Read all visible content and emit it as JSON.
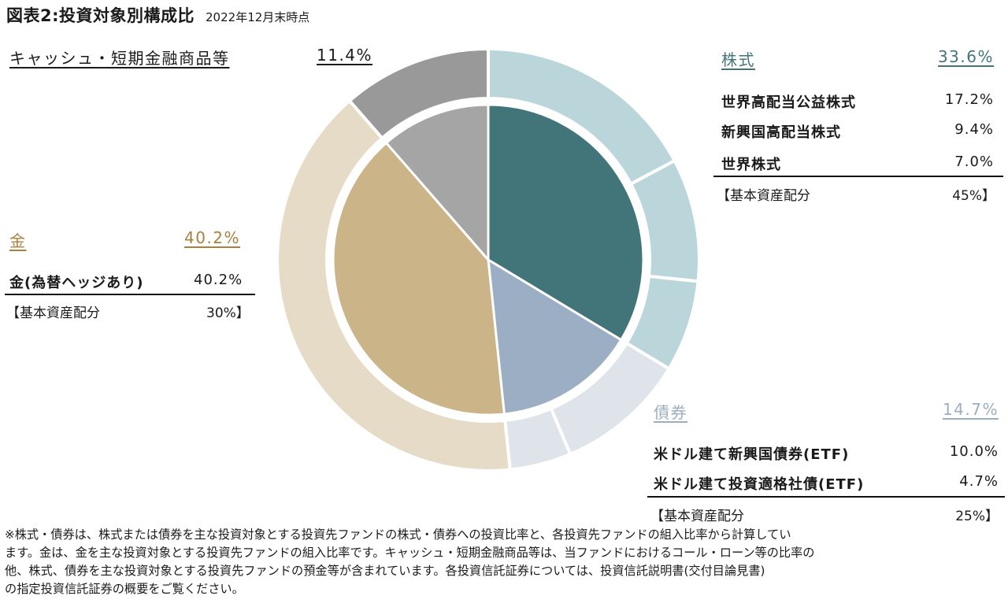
{
  "title": "図表2:投資対象別構成比",
  "subtitle": "2022年12月末時点",
  "colors": {
    "stock_dark": "#42757a",
    "stock_light": "#bad6db",
    "bond_dark": "#9caec3",
    "bond_light": "#dfe4ea",
    "gold_dark": "#ccb489",
    "gold_light": "#e6dbc6",
    "cash_dark": "#a5a5a5",
    "cash_light": "#999999",
    "stock_text": "#42757a",
    "bond_text": "#9caec3",
    "gold_text": "#a8813d"
  },
  "groups": {
    "cash": {
      "label": "キャッシュ・短期金融商品等",
      "value": "11.4%"
    },
    "stock": {
      "label": "株式",
      "value": "33.6%",
      "items": [
        {
          "label": "世界高配当公益株式",
          "value": "17.2%"
        },
        {
          "label": "新興国高配当株式",
          "value": "9.4%"
        },
        {
          "label": "世界株式",
          "value": "7.0%"
        }
      ],
      "base_label": "【基本資産配分",
      "base_value": "45%】"
    },
    "gold": {
      "label": "金",
      "value": "40.2%",
      "items": [
        {
          "label": "金(為替ヘッジあり)",
          "value": "40.2%"
        }
      ],
      "base_label": "【基本資産配分",
      "base_value": "30%】"
    },
    "bond": {
      "label": "債券",
      "value": "14.7%",
      "items": [
        {
          "label": "米ドル建て新興国債券(ETF)",
          "value": "10.0%"
        },
        {
          "label": "米ドル建て投資適格社債(ETF)",
          "value": "4.7%"
        }
      ],
      "base_label": "【基本資産配分",
      "base_value": "25%】"
    }
  },
  "chart_data": {
    "type": "pie",
    "inner": [
      {
        "name": "株式",
        "value": 33.6,
        "color": "#42757a"
      },
      {
        "name": "債券",
        "value": 14.7,
        "color": "#9caec3"
      },
      {
        "name": "金",
        "value": 40.2,
        "color": "#ccb489"
      },
      {
        "name": "キャッシュ・短期金融商品等",
        "value": 11.4,
        "color": "#a5a5a5"
      }
    ],
    "outer": [
      {
        "name": "世界高配当公益株式",
        "value": 17.2,
        "color": "#bad6db"
      },
      {
        "name": "新興国高配当株式",
        "value": 9.4,
        "color": "#bad6db"
      },
      {
        "name": "世界株式",
        "value": 7.0,
        "color": "#bad6db"
      },
      {
        "name": "米ドル建て新興国債券(ETF)",
        "value": 10.0,
        "color": "#dfe4ea"
      },
      {
        "name": "米ドル建て投資適格社債(ETF)",
        "value": 4.7,
        "color": "#dfe4ea"
      },
      {
        "name": "金(為替ヘッジあり)",
        "value": 40.2,
        "color": "#e6dbc6"
      },
      {
        "name": "キャッシュ・短期金融商品等",
        "value": 11.4,
        "color": "#999999"
      }
    ]
  },
  "footnote": [
    "※株式・債券は、株式または債券を主な投資対象とする投資先ファンドの株式・債券への投資比率と、各投資先ファンドの組入比率から計算してい",
    "ます。金は、金を主な投資対象とする投資先ファンドの組入比率です。キャッシュ・短期金融商品等は、当ファンドにおけるコール・ローン等の比率の",
    "他、株式、債券を主な投資対象とする投資先ファンドの預金等が含まれています。各投資信託証券については、投資信託説明書(交付目論見書)",
    "の指定投資信託証券の概要をご覧ください。"
  ]
}
